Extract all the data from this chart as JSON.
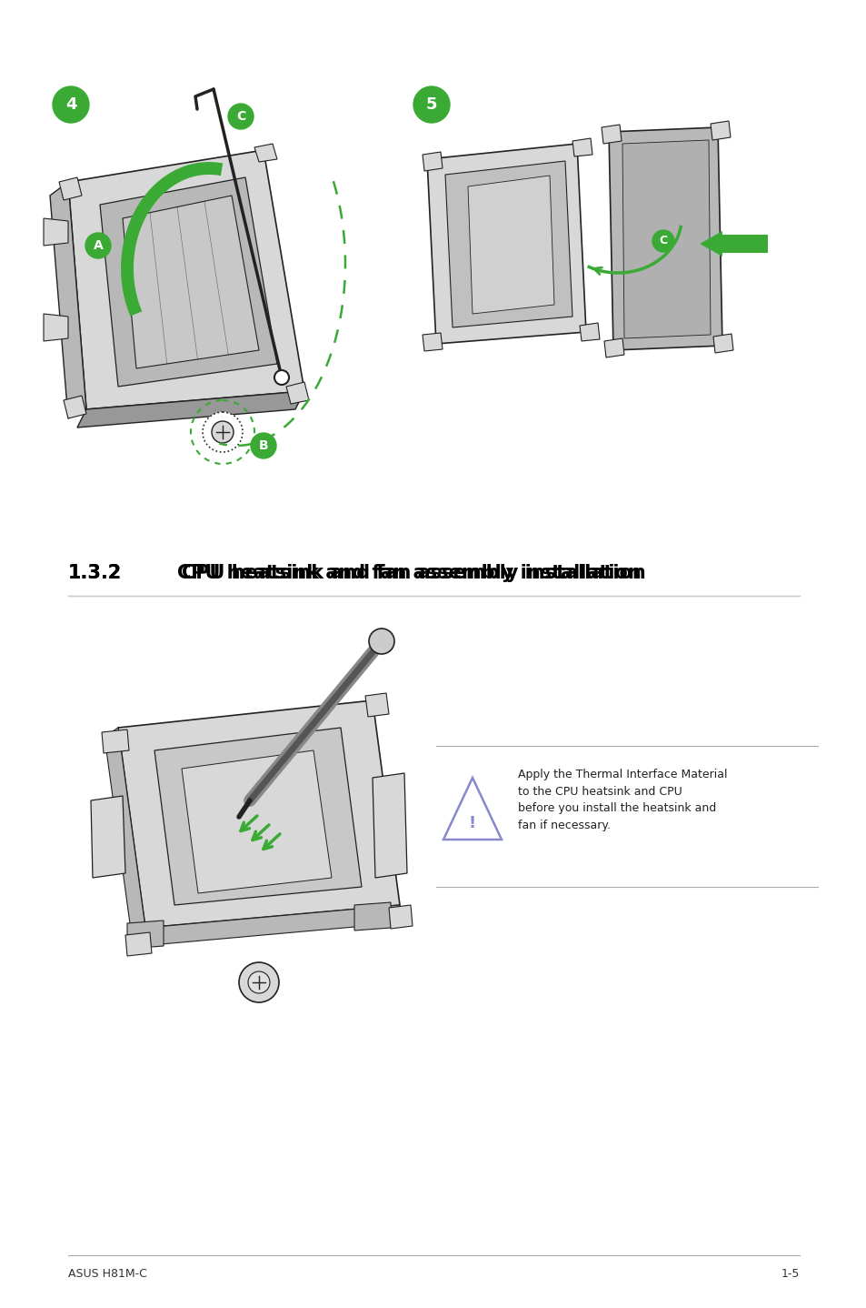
{
  "page_bg": "#ffffff",
  "title_number": "1.3.2",
  "title_text": "CPU heatsink and fan assembly installation",
  "title_fontsize": 15,
  "footer_left": "ASUS H81M-C",
  "footer_right": "1-5",
  "badge_color": "#3aaa35",
  "badge_text_color": "#ffffff",
  "arrow_color": "#3aaa35",
  "note_text": "Apply the Thermal Interface Material\nto the CPU heatsink and CPU\nbefore you install the heatsink and\nfan if necessary.",
  "note_fontsize": 9,
  "warn_color": "#8888cc",
  "dark": "#222222",
  "gray1": "#d8d8d8",
  "gray2": "#b8b8b8",
  "gray3": "#989898"
}
